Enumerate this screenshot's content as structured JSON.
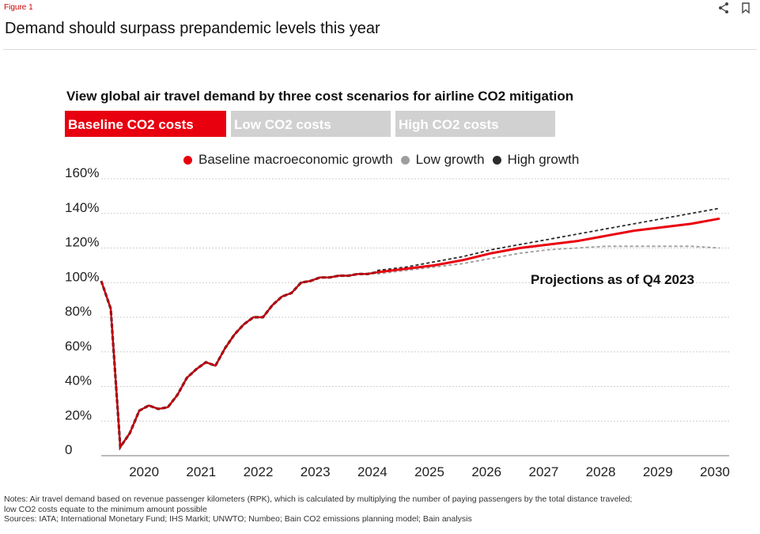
{
  "header": {
    "figure_label": "Figure 1",
    "title": "Demand should surpass prepandemic levels this year",
    "icons": [
      "share-icon",
      "bookmark-icon"
    ]
  },
  "chart_heading": "View global air travel demand by three cost scenarios for airline CO2 mitigation",
  "tabs": [
    {
      "label": "Baseline CO2 costs",
      "active": true
    },
    {
      "label": "Low CO2 costs",
      "active": false
    },
    {
      "label": "High CO2 costs",
      "active": false
    }
  ],
  "colors": {
    "accent": "#e8000f",
    "low": "#9e9e9e",
    "high": "#2b2b2b",
    "tab_inactive": "#d1d1d1"
  },
  "notes": {
    "line1": "Notes: Air travel demand based on revenue passenger kilometers (RPK), which is calculated by multiplying the number of paying passengers by the total distance traveled;",
    "line2": "low CO2 costs equate to the minimum amount possible",
    "line3": "Sources: IATA; International Monetary Fund; IHS Markit; UNWTO; Numbeo; Bain CO2 emissions planning model; Bain analysis"
  },
  "chart_data": {
    "type": "line",
    "title": "View global air travel demand by three cost scenarios for airline CO2 mitigation",
    "xlabel": "",
    "ylabel": "",
    "ylim": [
      0,
      160
    ],
    "xlim": [
      "2019-10",
      "2030-10"
    ],
    "x_ticks": [
      "2020",
      "2021",
      "2022",
      "2023",
      "2024",
      "2025",
      "2026",
      "2027",
      "2028",
      "2029",
      "2030"
    ],
    "y_ticks": [
      "0",
      "20%",
      "40%",
      "60%",
      "80%",
      "100%",
      "120%",
      "140%",
      "160%"
    ],
    "y_tick_values": [
      0,
      20,
      40,
      60,
      80,
      100,
      120,
      140,
      160
    ],
    "grid": true,
    "legend_position": "top",
    "annotation": "Projections as of Q4 2023",
    "history": {
      "x": [
        "2019-10",
        "2019-12",
        "2020-02",
        "2020-04",
        "2020-06",
        "2020-08",
        "2020-10",
        "2020-12",
        "2021-02",
        "2021-04",
        "2021-06",
        "2021-08",
        "2021-10",
        "2021-12",
        "2022-02",
        "2022-04",
        "2022-06",
        "2022-08",
        "2022-10",
        "2022-12",
        "2023-02",
        "2023-04",
        "2023-06",
        "2023-08",
        "2023-10",
        "2023-12",
        "2024-02",
        "2024-04",
        "2024-06",
        "2024-08"
      ],
      "y": [
        101,
        85,
        5,
        13,
        26,
        29,
        27,
        28,
        35,
        45,
        50,
        54,
        52,
        62,
        70,
        76,
        80,
        80,
        87,
        92,
        94,
        100,
        101,
        103,
        103,
        104,
        104,
        105,
        105,
        106
      ]
    },
    "series": [
      {
        "name": "Baseline macroeconomic growth",
        "color": "#e8000f",
        "x": [
          "2024-08",
          "2025-02",
          "2025-08",
          "2026-02",
          "2026-08",
          "2027-02",
          "2027-08",
          "2028-02",
          "2028-08",
          "2029-02",
          "2029-08",
          "2030-02",
          "2030-08"
        ],
        "y": [
          106,
          108,
          110,
          113,
          117,
          120,
          122,
          124,
          127,
          130,
          132,
          134,
          137
        ]
      },
      {
        "name": "Low growth",
        "color": "#9e9e9e",
        "x": [
          "2024-08",
          "2025-02",
          "2025-08",
          "2026-02",
          "2026-08",
          "2027-02",
          "2027-08",
          "2028-02",
          "2028-08",
          "2029-02",
          "2029-08",
          "2030-02",
          "2030-08"
        ],
        "y": [
          105,
          107,
          109,
          111,
          114,
          117,
          119,
          120,
          121,
          121,
          121,
          121,
          120
        ]
      },
      {
        "name": "High growth",
        "color": "#2b2b2b",
        "x": [
          "2024-08",
          "2025-02",
          "2025-08",
          "2026-02",
          "2026-08",
          "2027-02",
          "2027-08",
          "2028-02",
          "2028-08",
          "2029-02",
          "2029-08",
          "2030-02",
          "2030-08"
        ],
        "y": [
          107,
          109,
          112,
          115,
          119,
          122,
          125,
          128,
          131,
          134,
          137,
          140,
          143
        ]
      }
    ]
  }
}
